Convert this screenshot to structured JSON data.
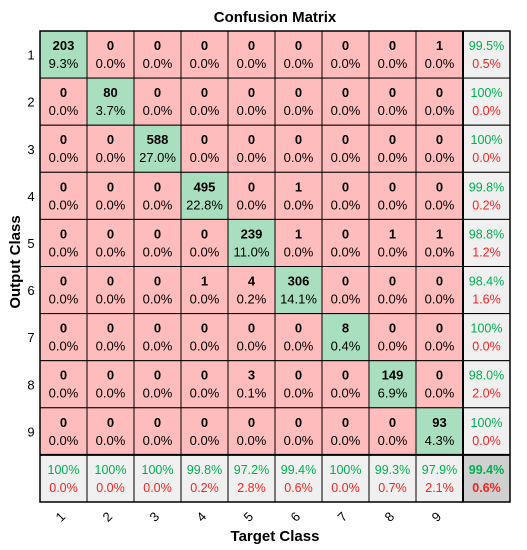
{
  "chart_data": {
    "type": "heatmap",
    "title": "Confusion Matrix",
    "xlabel": "Target Class",
    "ylabel": "Output Class",
    "classes": [
      "1",
      "2",
      "3",
      "4",
      "5",
      "6",
      "7",
      "8",
      "9"
    ],
    "counts": [
      [
        203,
        0,
        0,
        0,
        0,
        0,
        0,
        0,
        1
      ],
      [
        0,
        80,
        0,
        0,
        0,
        0,
        0,
        0,
        0
      ],
      [
        0,
        0,
        588,
        0,
        0,
        0,
        0,
        0,
        0
      ],
      [
        0,
        0,
        0,
        495,
        0,
        1,
        0,
        0,
        0
      ],
      [
        0,
        0,
        0,
        0,
        239,
        1,
        0,
        1,
        1
      ],
      [
        0,
        0,
        0,
        1,
        4,
        306,
        0,
        0,
        0
      ],
      [
        0,
        0,
        0,
        0,
        0,
        0,
        8,
        0,
        0
      ],
      [
        0,
        0,
        0,
        0,
        3,
        0,
        0,
        149,
        0
      ],
      [
        0,
        0,
        0,
        0,
        0,
        0,
        0,
        0,
        93
      ]
    ],
    "percents": [
      [
        "9.3%",
        "0.0%",
        "0.0%",
        "0.0%",
        "0.0%",
        "0.0%",
        "0.0%",
        "0.0%",
        "0.0%"
      ],
      [
        "0.0%",
        "3.7%",
        "0.0%",
        "0.0%",
        "0.0%",
        "0.0%",
        "0.0%",
        "0.0%",
        "0.0%"
      ],
      [
        "0.0%",
        "0.0%",
        "27.0%",
        "0.0%",
        "0.0%",
        "0.0%",
        "0.0%",
        "0.0%",
        "0.0%"
      ],
      [
        "0.0%",
        "0.0%",
        "0.0%",
        "22.8%",
        "0.0%",
        "0.0%",
        "0.0%",
        "0.0%",
        "0.0%"
      ],
      [
        "0.0%",
        "0.0%",
        "0.0%",
        "0.0%",
        "11.0%",
        "0.0%",
        "0.0%",
        "0.0%",
        "0.0%"
      ],
      [
        "0.0%",
        "0.0%",
        "0.0%",
        "0.0%",
        "0.2%",
        "14.1%",
        "0.0%",
        "0.0%",
        "0.0%"
      ],
      [
        "0.0%",
        "0.0%",
        "0.0%",
        "0.0%",
        "0.0%",
        "0.0%",
        "0.4%",
        "0.0%",
        "0.0%"
      ],
      [
        "0.0%",
        "0.0%",
        "0.0%",
        "0.0%",
        "0.1%",
        "0.0%",
        "0.0%",
        "6.9%",
        "0.0%"
      ],
      [
        "0.0%",
        "0.0%",
        "0.0%",
        "0.0%",
        "0.0%",
        "0.0%",
        "0.0%",
        "0.0%",
        "4.3%"
      ]
    ],
    "row_summary": [
      [
        "99.5%",
        "0.5%"
      ],
      [
        "100%",
        "0.0%"
      ],
      [
        "100%",
        "0.0%"
      ],
      [
        "99.8%",
        "0.2%"
      ],
      [
        "98.8%",
        "1.2%"
      ],
      [
        "98.4%",
        "1.6%"
      ],
      [
        "100%",
        "0.0%"
      ],
      [
        "98.0%",
        "2.0%"
      ],
      [
        "100%",
        "0.0%"
      ]
    ],
    "col_summary": [
      [
        "100%",
        "0.0%"
      ],
      [
        "100%",
        "0.0%"
      ],
      [
        "100%",
        "0.0%"
      ],
      [
        "99.8%",
        "0.2%"
      ],
      [
        "97.2%",
        "2.8%"
      ],
      [
        "99.4%",
        "0.6%"
      ],
      [
        "100%",
        "0.0%"
      ],
      [
        "99.3%",
        "0.7%"
      ],
      [
        "97.9%",
        "2.1%"
      ]
    ],
    "overall": [
      "99.4%",
      "0.6%"
    ]
  },
  "colors": {
    "correct_cell": "#a9dfbf",
    "incorrect_cell": "#ffbcbc",
    "summary_cell": "#f0f0f0",
    "overall_cell": "#d0d0d0",
    "good_text": "#00b050",
    "bad_text": "#ff2020",
    "grid": "#000000"
  }
}
